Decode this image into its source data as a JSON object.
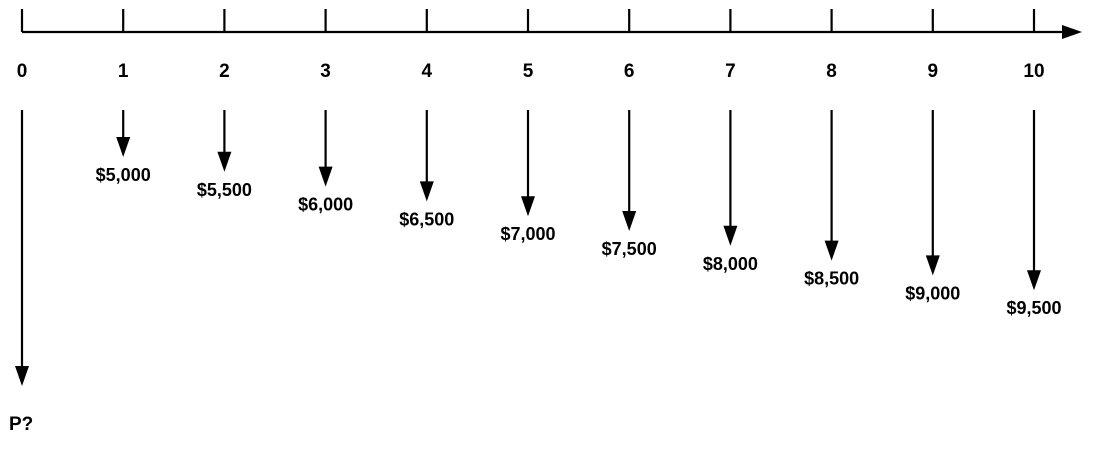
{
  "diagram": {
    "type": "cash-flow-timeline",
    "colors": {
      "line": "#000000",
      "text": "#000000",
      "background": "#ffffff"
    },
    "periods": [
      "0",
      "1",
      "2",
      "3",
      "4",
      "5",
      "6",
      "7",
      "8",
      "9",
      "10"
    ],
    "cash_flows": [
      {
        "period": "1",
        "label": "$5,000",
        "amount": 5000
      },
      {
        "period": "2",
        "label": "$5,500",
        "amount": 5500
      },
      {
        "period": "3",
        "label": "$6,000",
        "amount": 6000
      },
      {
        "period": "4",
        "label": "$6,500",
        "amount": 6500
      },
      {
        "period": "5",
        "label": "$7,000",
        "amount": 7000
      },
      {
        "period": "6",
        "label": "$7,500",
        "amount": 7500
      },
      {
        "period": "7",
        "label": "$8,000",
        "amount": 8000
      },
      {
        "period": "8",
        "label": "$8,500",
        "amount": 8500
      },
      {
        "period": "9",
        "label": "$9,000",
        "amount": 9000
      },
      {
        "period": "10",
        "label": "$9,500",
        "amount": 9500
      }
    ],
    "unknown_present_value": {
      "period": "0",
      "label": "P?"
    }
  }
}
